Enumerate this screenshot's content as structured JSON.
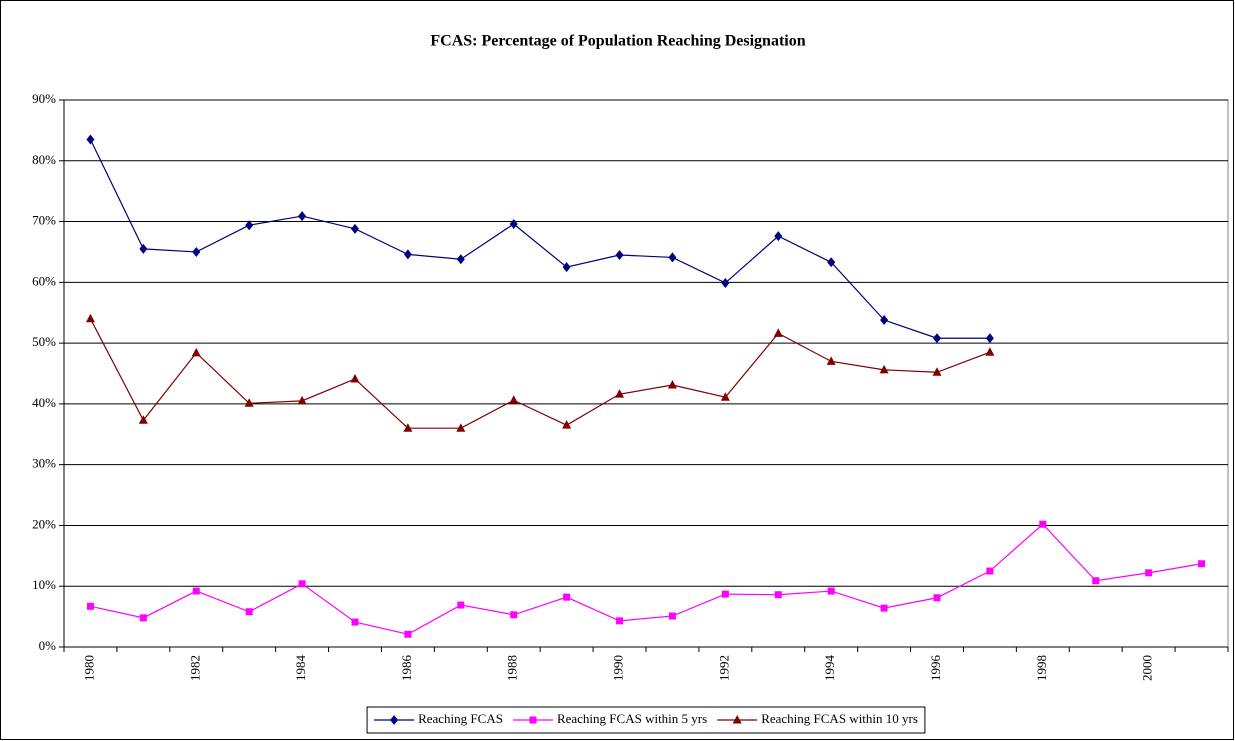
{
  "chart_data": {
    "type": "line",
    "title": "FCAS: Percentage of Population Reaching Designation",
    "categories": [
      "1980",
      null,
      "1982",
      null,
      "1984",
      null,
      "1986",
      null,
      "1988",
      null,
      "1990",
      null,
      "1992",
      null,
      "1994",
      null,
      "1996",
      null,
      "1998",
      null,
      "2000",
      null
    ],
    "series": [
      {
        "name": "Reaching FCAS",
        "color": "#000080",
        "marker": "diamond",
        "values": [
          83.5,
          65.5,
          65,
          69.4,
          70.9,
          68.8,
          64.6,
          63.8,
          69.6,
          62.5,
          64.5,
          64.1,
          59.9,
          67.6,
          63.3,
          53.8,
          50.8,
          50.8,
          null,
          null,
          null,
          null
        ]
      },
      {
        "name": "Reaching FCAS within 5 yrs",
        "color": "#ff00ff",
        "marker": "square",
        "values": [
          6.7,
          4.8,
          9.2,
          5.8,
          10.4,
          4.1,
          2.1,
          6.9,
          5.3,
          8.2,
          4.3,
          5.1,
          8.7,
          8.6,
          9.2,
          6.4,
          8.1,
          12.5,
          20.2,
          10.9,
          12.2,
          13.7
        ]
      },
      {
        "name": "Reaching FCAS within 10 yrs",
        "color": "#800000",
        "marker": "triangle",
        "values": [
          54,
          37.3,
          48.4,
          40.1,
          40.5,
          44.1,
          36,
          36,
          40.6,
          36.5,
          41.6,
          43.1,
          41.1,
          51.6,
          47,
          45.6,
          45.2,
          48.5,
          null,
          null,
          null,
          null
        ]
      }
    ],
    "ylim": [
      0,
      90
    ],
    "yticks": [
      {
        "value": 0,
        "label": "0%"
      },
      {
        "value": 10,
        "label": "10%"
      },
      {
        "value": 20,
        "label": "20%"
      },
      {
        "value": 30,
        "label": "30%"
      },
      {
        "value": 40,
        "label": "40%"
      },
      {
        "value": 50,
        "label": "50%"
      },
      {
        "value": 60,
        "label": "60%"
      },
      {
        "value": 70,
        "label": "70%"
      },
      {
        "value": 80,
        "label": "80%"
      },
      {
        "value": 90,
        "label": "90%"
      }
    ],
    "grid": true,
    "legend": "bottom"
  }
}
